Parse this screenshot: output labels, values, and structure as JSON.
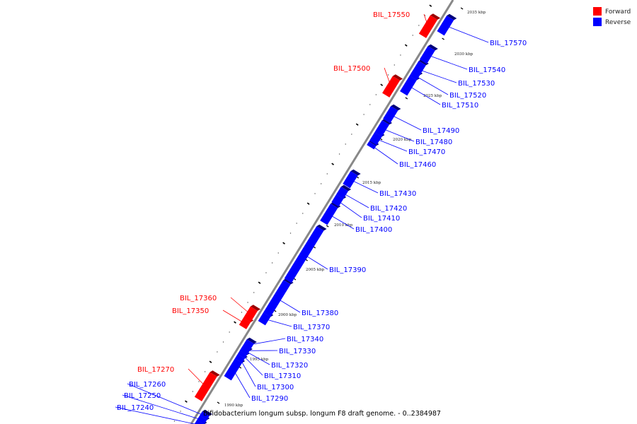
{
  "caption": "Bifidobacterium longum subsp. longum F8 draft genome. - 0..2384987",
  "legend": [
    {
      "label": "Forward",
      "color": "#ff0000"
    },
    {
      "label": "Reverse",
      "color": "#0000ff"
    }
  ],
  "colors": {
    "forward": "#ff0000",
    "reverse": "#0000ff",
    "backbone": "#888888"
  },
  "kbp_marks": [
    "1990 kbp",
    "1995 kbp",
    "2000 kbp",
    "2005 kbp",
    "2010 kbp",
    "2015 kbp",
    "2020 kbp",
    "2025 kbp",
    "2030 kbp",
    "2035 kbp"
  ],
  "genes": [
    {
      "id": "BIL_17240",
      "strand": "reverse"
    },
    {
      "id": "BIL_17250",
      "strand": "reverse"
    },
    {
      "id": "BIL_17260",
      "strand": "reverse"
    },
    {
      "id": "BIL_17270",
      "strand": "forward"
    },
    {
      "id": "BIL_17290",
      "strand": "reverse"
    },
    {
      "id": "BIL_17300",
      "strand": "reverse"
    },
    {
      "id": "BIL_17310",
      "strand": "reverse"
    },
    {
      "id": "BIL_17320",
      "strand": "reverse"
    },
    {
      "id": "BIL_17330",
      "strand": "reverse"
    },
    {
      "id": "BIL_17340",
      "strand": "reverse"
    },
    {
      "id": "BIL_17350",
      "strand": "forward"
    },
    {
      "id": "BIL_17360",
      "strand": "forward"
    },
    {
      "id": "BIL_17370",
      "strand": "reverse"
    },
    {
      "id": "BIL_17380",
      "strand": "reverse"
    },
    {
      "id": "BIL_17390",
      "strand": "reverse"
    },
    {
      "id": "BIL_17400",
      "strand": "reverse"
    },
    {
      "id": "BIL_17410",
      "strand": "reverse"
    },
    {
      "id": "BIL_17420",
      "strand": "reverse"
    },
    {
      "id": "BIL_17430",
      "strand": "reverse"
    },
    {
      "id": "BIL_17460",
      "strand": "reverse"
    },
    {
      "id": "BIL_17470",
      "strand": "reverse"
    },
    {
      "id": "BIL_17480",
      "strand": "reverse"
    },
    {
      "id": "BIL_17490",
      "strand": "reverse"
    },
    {
      "id": "BIL_17500",
      "strand": "forward"
    },
    {
      "id": "BIL_17510",
      "strand": "reverse"
    },
    {
      "id": "BIL_17520",
      "strand": "reverse"
    },
    {
      "id": "BIL_17530",
      "strand": "reverse"
    },
    {
      "id": "BIL_17540",
      "strand": "reverse"
    },
    {
      "id": "BIL_17550",
      "strand": "forward"
    },
    {
      "id": "BIL_17570",
      "strand": "reverse"
    }
  ]
}
